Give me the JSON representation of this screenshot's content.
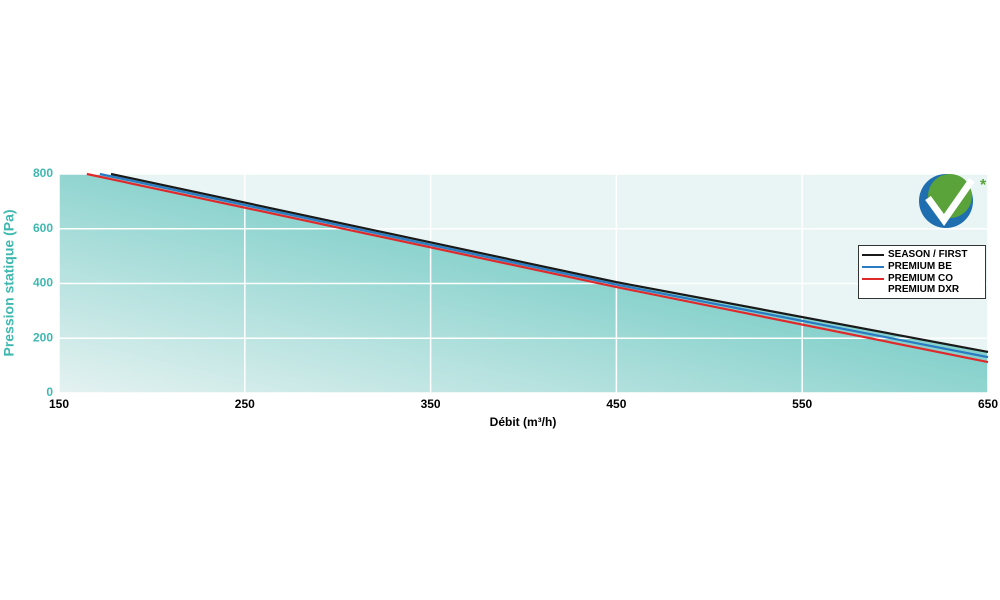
{
  "chart_data": {
    "type": "line",
    "x_label": "Débit (m³/h)",
    "y_label": "Pression statique (Pa)",
    "logo_mark": "*",
    "xlim": [
      150,
      650
    ],
    "xticks": [
      150,
      250,
      350,
      450,
      550,
      650
    ],
    "ylim": [
      0,
      800
    ],
    "yticks": [
      0,
      200,
      400,
      600,
      800
    ],
    "grid": true,
    "legend_position": "right",
    "series": [
      {
        "name": "SEASON / FIRST",
        "color": "#1a1a1a",
        "x": [
          178,
          450,
          650
        ],
        "values": [
          800,
          405,
          150
        ]
      },
      {
        "name": "PREMIUM BE",
        "color": "#2a7bc4",
        "x": [
          172,
          450,
          650
        ],
        "values": [
          800,
          396,
          131
        ]
      },
      {
        "name": "PREMIUM CO\nPREMIUM DXR",
        "color": "#e0292b",
        "x": [
          165,
          450,
          650
        ],
        "values": [
          800,
          387,
          113
        ]
      }
    ]
  }
}
